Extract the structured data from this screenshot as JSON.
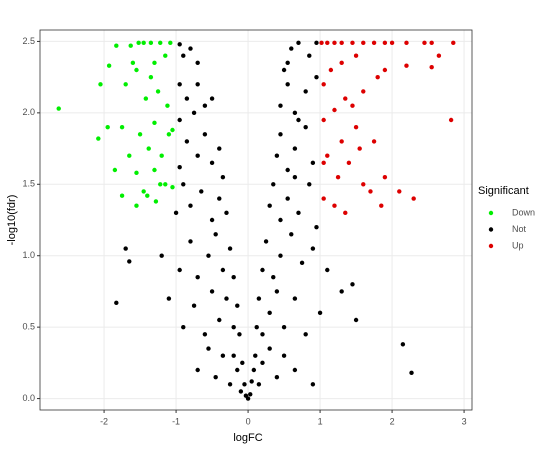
{
  "chart_data": {
    "type": "scatter",
    "x_label": "logFC",
    "y_label": "-log10(fdr)",
    "legend_title": "Significant",
    "legend_position": "right",
    "grid": true,
    "xlim": [
      -2.89,
      3.11
    ],
    "ylim": [
      -0.08,
      2.58
    ],
    "xticks": [
      -2,
      -1,
      0,
      1,
      2,
      3
    ],
    "yticks": [
      {
        "value": 0,
        "label": "0.0"
      },
      0.5,
      {
        "value": 1,
        "label": "1.0"
      },
      1.5,
      {
        "value": 2,
        "label": "2.0"
      },
      2.5
    ],
    "series": [
      {
        "name": "Down",
        "color": "#00ee00",
        "x": [
          -2.63,
          -2.05,
          -2.08,
          -1.93,
          -1.83,
          -1.95,
          -1.63,
          -1.52,
          -1.45,
          -1.35,
          -1.22,
          -1.08,
          -1.55,
          -1.6,
          -1.3,
          -1.15,
          -1.42,
          -1.25,
          -1.12,
          -1.3,
          -1.05,
          -1.1,
          -1.38,
          -1.65,
          -1.85,
          -1.55,
          -1.3,
          -1.45,
          -1.22,
          -1.4,
          -1.28,
          -1.55,
          -1.75,
          -1.15,
          -1.05,
          -1.2,
          -1.5,
          -1.75,
          -1.35,
          -1.7
        ],
        "values": [
          2.03,
          2.2,
          1.82,
          2.33,
          2.47,
          1.9,
          2.47,
          2.49,
          2.49,
          2.49,
          2.49,
          2.49,
          2.3,
          2.35,
          2.35,
          2.4,
          2.1,
          2.15,
          2.05,
          1.93,
          1.88,
          1.85,
          1.75,
          1.7,
          1.6,
          1.58,
          1.6,
          1.45,
          1.5,
          1.42,
          1.38,
          1.35,
          1.42,
          1.5,
          1.48,
          1.7,
          1.85,
          1.9,
          2.25,
          2.2
        ]
      },
      {
        "name": "Not",
        "color": "#000000",
        "x": [
          -1.83,
          -1.65,
          -1.7,
          2.15,
          2.27,
          1.45,
          1.3,
          1.5,
          -0.95,
          -0.9,
          -0.8,
          -0.7,
          0.6,
          0.7,
          0.85,
          0.95,
          0.55,
          -0.95,
          -0.85,
          -0.7,
          -0.6,
          -0.5,
          -0.75,
          0.45,
          0.55,
          0.65,
          0.8,
          0.95,
          0.5,
          -0.95,
          -0.85,
          -0.7,
          -0.6,
          -0.5,
          -0.4,
          -0.95,
          0.4,
          0.45,
          0.55,
          0.65,
          0.8,
          0.9,
          0.7,
          -1.0,
          -0.9,
          -0.8,
          -0.65,
          -0.5,
          -0.4,
          -0.3,
          -0.35,
          0.3,
          0.35,
          0.45,
          0.55,
          0.7,
          0.85,
          0.95,
          0.65,
          -1.2,
          -0.95,
          -0.8,
          -0.7,
          -0.55,
          -0.45,
          -0.35,
          -0.25,
          -0.2,
          0.2,
          0.25,
          0.35,
          0.45,
          0.6,
          0.75,
          0.9,
          1.1,
          -1.1,
          -0.9,
          -0.75,
          -0.6,
          -0.5,
          -0.4,
          -0.3,
          -0.2,
          -0.15,
          -0.12,
          0.12,
          0.15,
          0.2,
          0.3,
          0.4,
          0.5,
          0.65,
          0.8,
          1.0,
          -0.7,
          -0.55,
          -0.45,
          -0.35,
          -0.25,
          -0.2,
          -0.15,
          -0.1,
          -0.08,
          -0.05,
          -0.03,
          0,
          0.03,
          0.05,
          0.08,
          0.1,
          0.15,
          0.2,
          0.3,
          0.4,
          0.5,
          0.65,
          0.9
        ],
        "values": [
          0.67,
          0.96,
          1.05,
          0.38,
          0.18,
          0.8,
          0.75,
          0.55,
          2.48,
          2.4,
          2.45,
          2.35,
          2.45,
          2.49,
          2.4,
          2.49,
          2.35,
          2.2,
          2.1,
          2.2,
          2.05,
          2.1,
          2.0,
          2.05,
          2.2,
          2.0,
          2.15,
          2.25,
          2.3,
          1.95,
          1.8,
          1.7,
          1.85,
          1.65,
          1.75,
          1.62,
          1.7,
          1.85,
          1.6,
          1.75,
          1.9,
          1.65,
          1.95,
          1.3,
          1.5,
          1.35,
          1.45,
          1.25,
          1.4,
          1.3,
          1.55,
          1.35,
          1.5,
          1.25,
          1.4,
          1.3,
          1.5,
          1.2,
          1.55,
          1.0,
          0.9,
          1.1,
          0.85,
          1.0,
          1.15,
          0.9,
          1.05,
          0.85,
          0.9,
          1.1,
          0.85,
          1.0,
          1.15,
          0.95,
          1.05,
          0.9,
          0.7,
          0.5,
          0.65,
          0.45,
          0.75,
          0.55,
          0.7,
          0.5,
          0.65,
          0.45,
          0.5,
          0.7,
          0.45,
          0.6,
          0.75,
          0.5,
          0.7,
          0.45,
          0.6,
          0.2,
          0.35,
          0.15,
          0.3,
          0.1,
          0.3,
          0.2,
          0.05,
          0.25,
          0.1,
          0.02,
          0.0,
          0.03,
          0.12,
          0.2,
          0.3,
          0.1,
          0.25,
          0.35,
          0.15,
          0.3,
          0.2,
          0.1
        ]
      },
      {
        "name": "Up",
        "color": "#dd0000",
        "x": [
          1.02,
          1.1,
          1.2,
          1.3,
          1.45,
          1.6,
          1.75,
          1.9,
          2.0,
          2.2,
          2.45,
          2.55,
          2.85,
          2.65,
          2.55,
          2.2,
          1.9,
          1.5,
          1.3,
          1.15,
          1.05,
          1.35,
          1.6,
          1.8,
          1.45,
          1.2,
          1.05,
          2.82,
          1.3,
          1.55,
          1.75,
          1.1,
          1.4,
          1.25,
          1.6,
          1.9,
          2.1,
          1.7,
          1.2,
          1.35,
          1.05,
          1.85,
          2.3,
          1.5,
          1.05
        ],
        "values": [
          2.49,
          2.49,
          2.49,
          2.49,
          2.49,
          2.49,
          2.49,
          2.49,
          2.49,
          2.49,
          2.49,
          2.49,
          2.49,
          2.4,
          2.32,
          2.33,
          2.3,
          2.4,
          2.35,
          2.3,
          2.2,
          2.1,
          2.15,
          2.25,
          2.05,
          2.02,
          1.95,
          1.95,
          1.8,
          1.75,
          1.8,
          1.7,
          1.65,
          1.55,
          1.5,
          1.55,
          1.45,
          1.45,
          1.35,
          1.3,
          1.4,
          1.35,
          1.4,
          1.9,
          1.65
        ]
      }
    ]
  }
}
